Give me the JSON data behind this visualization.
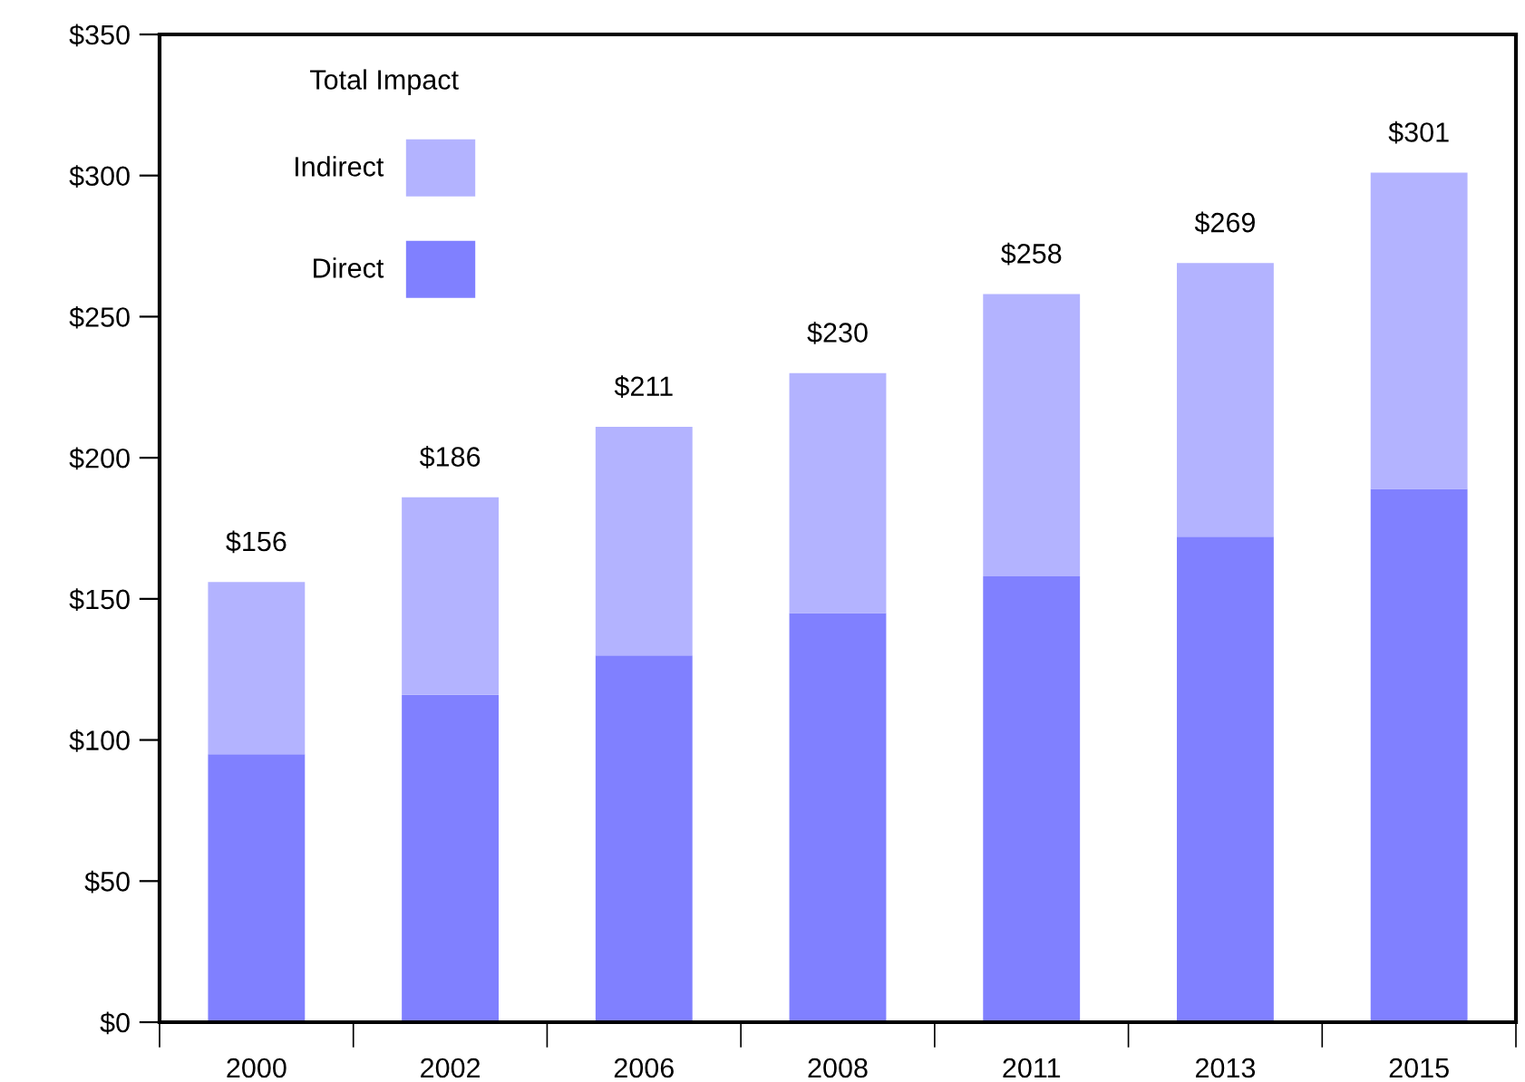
{
  "chart_data": {
    "type": "bar",
    "stacked": true,
    "categories": [
      "2000",
      "2002",
      "2006",
      "2008",
      "2011",
      "2013",
      "2015"
    ],
    "series": [
      {
        "name": "Direct",
        "color": "#8080ff",
        "values": [
          95,
          116,
          130,
          145,
          158,
          172,
          189
        ]
      },
      {
        "name": "Indirect",
        "color": "#b3b3ff",
        "values": [
          61,
          70,
          81,
          85,
          100,
          97,
          112
        ]
      }
    ],
    "totals": [
      "$156",
      "$186",
      "$211",
      "$230",
      "$258",
      "$269",
      "$301"
    ],
    "legend_title": "Total Impact",
    "legend": "top left",
    "ylim": [
      0,
      350
    ],
    "yticks": [
      {
        "value": 0,
        "label": "$0"
      },
      {
        "value": 50,
        "label": "$50"
      },
      {
        "value": 100,
        "label": "$100"
      },
      {
        "value": 150,
        "label": "$150"
      },
      {
        "value": 200,
        "label": "$200"
      },
      {
        "value": 250,
        "label": "$250"
      },
      {
        "value": 300,
        "label": "$300"
      },
      {
        "value": 350,
        "label": "$350"
      }
    ],
    "grid": false
  }
}
